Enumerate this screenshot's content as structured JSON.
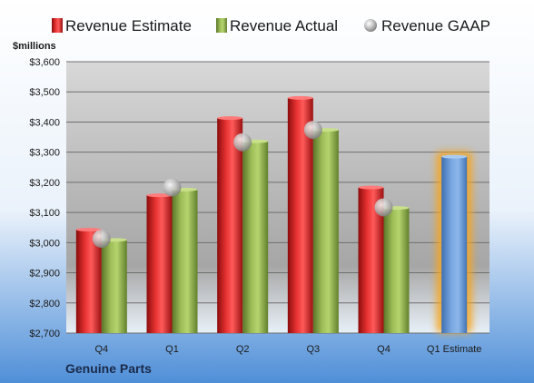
{
  "chart_data": {
    "type": "bar",
    "ylabel": "$millions",
    "footer": "Genuine Parts",
    "categories": [
      "Q4",
      "Q1",
      "Q2",
      "Q3",
      "Q4",
      "Q1 Estimate"
    ],
    "ylim": [
      2700,
      3600
    ],
    "yticks": [
      "$2,700",
      "$2,800",
      "$2,900",
      "$3,000",
      "$3,100",
      "$3,200",
      "$3,300",
      "$3,400",
      "$3,500",
      "$3,600"
    ],
    "yticks_values": [
      2700,
      2800,
      2900,
      3000,
      3100,
      3200,
      3300,
      3400,
      3500,
      3600
    ],
    "legend_position": "top",
    "series": [
      {
        "name": "Revenue Estimate",
        "type": "bar",
        "color": "#d42020",
        "values": [
          3043,
          3157,
          3413,
          3480,
          3183,
          null
        ]
      },
      {
        "name": "Revenue Actual",
        "type": "bar",
        "color": "#8fb04a",
        "values": [
          3009,
          3176,
          3336,
          3374,
          3115,
          3285
        ]
      },
      {
        "name": "Revenue GAAP",
        "type": "scatter",
        "color": "#b8b8b8",
        "values": [
          3013,
          3183,
          3333,
          3374,
          3117,
          null
        ]
      }
    ],
    "highlight": {
      "index": 5,
      "bar_color": "#6f9fd8",
      "glow_color": "#f5a623"
    }
  }
}
